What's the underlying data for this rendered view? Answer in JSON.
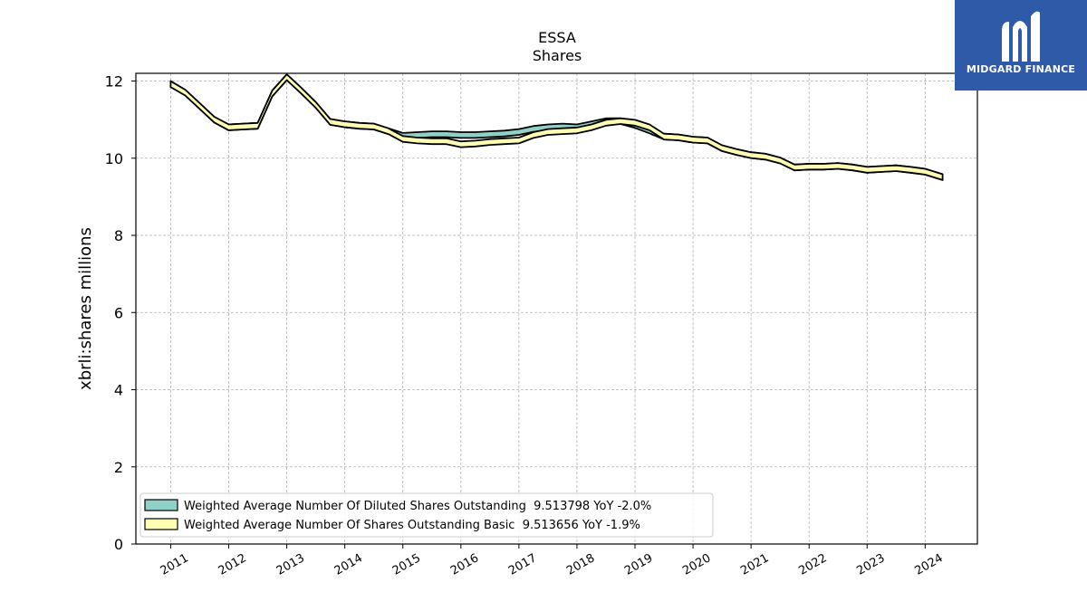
{
  "chart_data": {
    "type": "line",
    "title": "ESSA",
    "subtitle": "Shares",
    "xlabel": "",
    "ylabel": "xbrli:shares millions",
    "xlim": [
      2010.4,
      2024.9
    ],
    "ylim": [
      0,
      12.2
    ],
    "x_ticks": [
      "2011",
      "2012",
      "2013",
      "2014",
      "2015",
      "2016",
      "2017",
      "2018",
      "2019",
      "2020",
      "2021",
      "2022",
      "2023",
      "2024"
    ],
    "y_ticks": [
      "0",
      "2",
      "4",
      "6",
      "8",
      "10",
      "12"
    ],
    "grid": true,
    "legend_position": "lower-left",
    "series": [
      {
        "name": "Weighted Average Number Of Diluted Shares Outstanding",
        "legend_label": "Weighted Average Number Of Diluted Shares Outstanding  9.513798 YoY -2.0%",
        "color": "#8fd1c6",
        "x": [
          2011.0,
          2011.25,
          2011.5,
          2011.75,
          2012.0,
          2012.25,
          2012.5,
          2012.75,
          2013.0,
          2013.25,
          2013.5,
          2013.75,
          2014.0,
          2014.25,
          2014.5,
          2014.75,
          2015.0,
          2015.25,
          2015.5,
          2015.75,
          2016.0,
          2016.25,
          2016.5,
          2016.75,
          2017.0,
          2017.25,
          2017.5,
          2017.75,
          2018.0,
          2018.25,
          2018.5,
          2018.75,
          2019.0,
          2019.25,
          2019.5,
          2019.75,
          2020.0,
          2020.25,
          2020.5,
          2020.75,
          2021.0,
          2021.25,
          2021.5,
          2021.75,
          2022.0,
          2022.25,
          2022.5,
          2022.75,
          2023.0,
          2023.25,
          2023.5,
          2023.75,
          2024.0,
          2024.3
        ],
        "values": [
          11.92,
          11.7,
          11.35,
          11.0,
          10.8,
          10.82,
          10.84,
          11.68,
          12.1,
          11.75,
          11.38,
          10.94,
          10.88,
          10.84,
          10.82,
          10.7,
          10.58,
          10.6,
          10.62,
          10.62,
          10.6,
          10.6,
          10.62,
          10.64,
          10.68,
          10.76,
          10.8,
          10.82,
          10.8,
          10.88,
          10.96,
          10.96,
          10.86,
          10.72,
          10.56,
          10.54,
          10.48,
          10.46,
          10.26,
          10.16,
          10.08,
          10.04,
          9.94,
          9.76,
          9.78,
          9.78,
          9.8,
          9.76,
          9.7,
          9.72,
          9.74,
          9.7,
          9.65,
          9.51
        ]
      },
      {
        "name": "Weighted Average Number Of Shares Outstanding Basic",
        "legend_label": "Weighted Average Number Of Shares Outstanding Basic  9.513656 YoY -1.9%",
        "color": "#ffffb3",
        "x": [
          2011.0,
          2011.25,
          2011.5,
          2011.75,
          2012.0,
          2012.25,
          2012.5,
          2012.75,
          2013.0,
          2013.25,
          2013.5,
          2013.75,
          2014.0,
          2014.25,
          2014.5,
          2014.75,
          2015.0,
          2015.25,
          2015.5,
          2015.75,
          2016.0,
          2016.25,
          2016.5,
          2016.75,
          2017.0,
          2017.25,
          2017.5,
          2017.75,
          2018.0,
          2018.25,
          2018.5,
          2018.75,
          2019.0,
          2019.25,
          2019.5,
          2019.75,
          2020.0,
          2020.25,
          2020.5,
          2020.75,
          2021.0,
          2021.25,
          2021.5,
          2021.75,
          2022.0,
          2022.25,
          2022.5,
          2022.75,
          2023.0,
          2023.25,
          2023.5,
          2023.75,
          2024.0,
          2024.3
        ],
        "values": [
          11.92,
          11.7,
          11.35,
          11.0,
          10.8,
          10.82,
          10.84,
          11.68,
          12.1,
          11.75,
          11.38,
          10.94,
          10.88,
          10.84,
          10.82,
          10.7,
          10.5,
          10.46,
          10.44,
          10.44,
          10.36,
          10.38,
          10.42,
          10.44,
          10.46,
          10.6,
          10.68,
          10.7,
          10.72,
          10.8,
          10.92,
          10.96,
          10.92,
          10.8,
          10.56,
          10.54,
          10.48,
          10.46,
          10.26,
          10.16,
          10.08,
          10.04,
          9.94,
          9.76,
          9.78,
          9.78,
          9.8,
          9.76,
          9.7,
          9.72,
          9.74,
          9.7,
          9.65,
          9.51
        ]
      }
    ]
  },
  "logo": {
    "text": "MIDGARD FINANCE",
    "icon": "midgard-m-icon",
    "background": "#2f5aa8"
  }
}
